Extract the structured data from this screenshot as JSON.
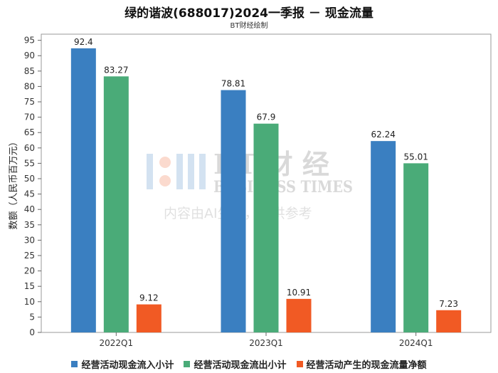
{
  "header": {
    "title": "绿的谐波(688017)2024一季报 － 现金流量",
    "subtitle": "BT财经绘制"
  },
  "watermark": {
    "brand": "BT 财 经",
    "brand_en": "BUSINESS TIMES",
    "note": "内容由AI生成，仅供参考"
  },
  "colors": {
    "inflow": "#3a7fc1",
    "outflow": "#4aab78",
    "net": "#f15a24"
  },
  "chart_data": {
    "type": "bar",
    "categories": [
      "2022Q1",
      "2023Q1",
      "2024Q1"
    ],
    "series": [
      {
        "name": "经营活动现金流入小计",
        "values": [
          92.4,
          78.81,
          62.24
        ],
        "labels": [
          "92.4",
          "78.81",
          "62.24"
        ]
      },
      {
        "name": "经营活动现金流出小计",
        "values": [
          83.27,
          67.9,
          55.01
        ],
        "labels": [
          "83.27",
          "67.9",
          "55.01"
        ]
      },
      {
        "name": "经营活动产生的现金流量净额",
        "values": [
          9.12,
          10.91,
          7.23
        ],
        "labels": [
          "9.12",
          "10.91",
          "7.23"
        ]
      }
    ],
    "ylabel": "数额（人民币百万元）",
    "ylim": [
      0,
      97
    ],
    "yticks": [
      0,
      5,
      10,
      15,
      20,
      25,
      30,
      35,
      40,
      45,
      50,
      55,
      60,
      65,
      70,
      75,
      80,
      85,
      90,
      95
    ],
    "grid": false,
    "legend": "bottom"
  }
}
